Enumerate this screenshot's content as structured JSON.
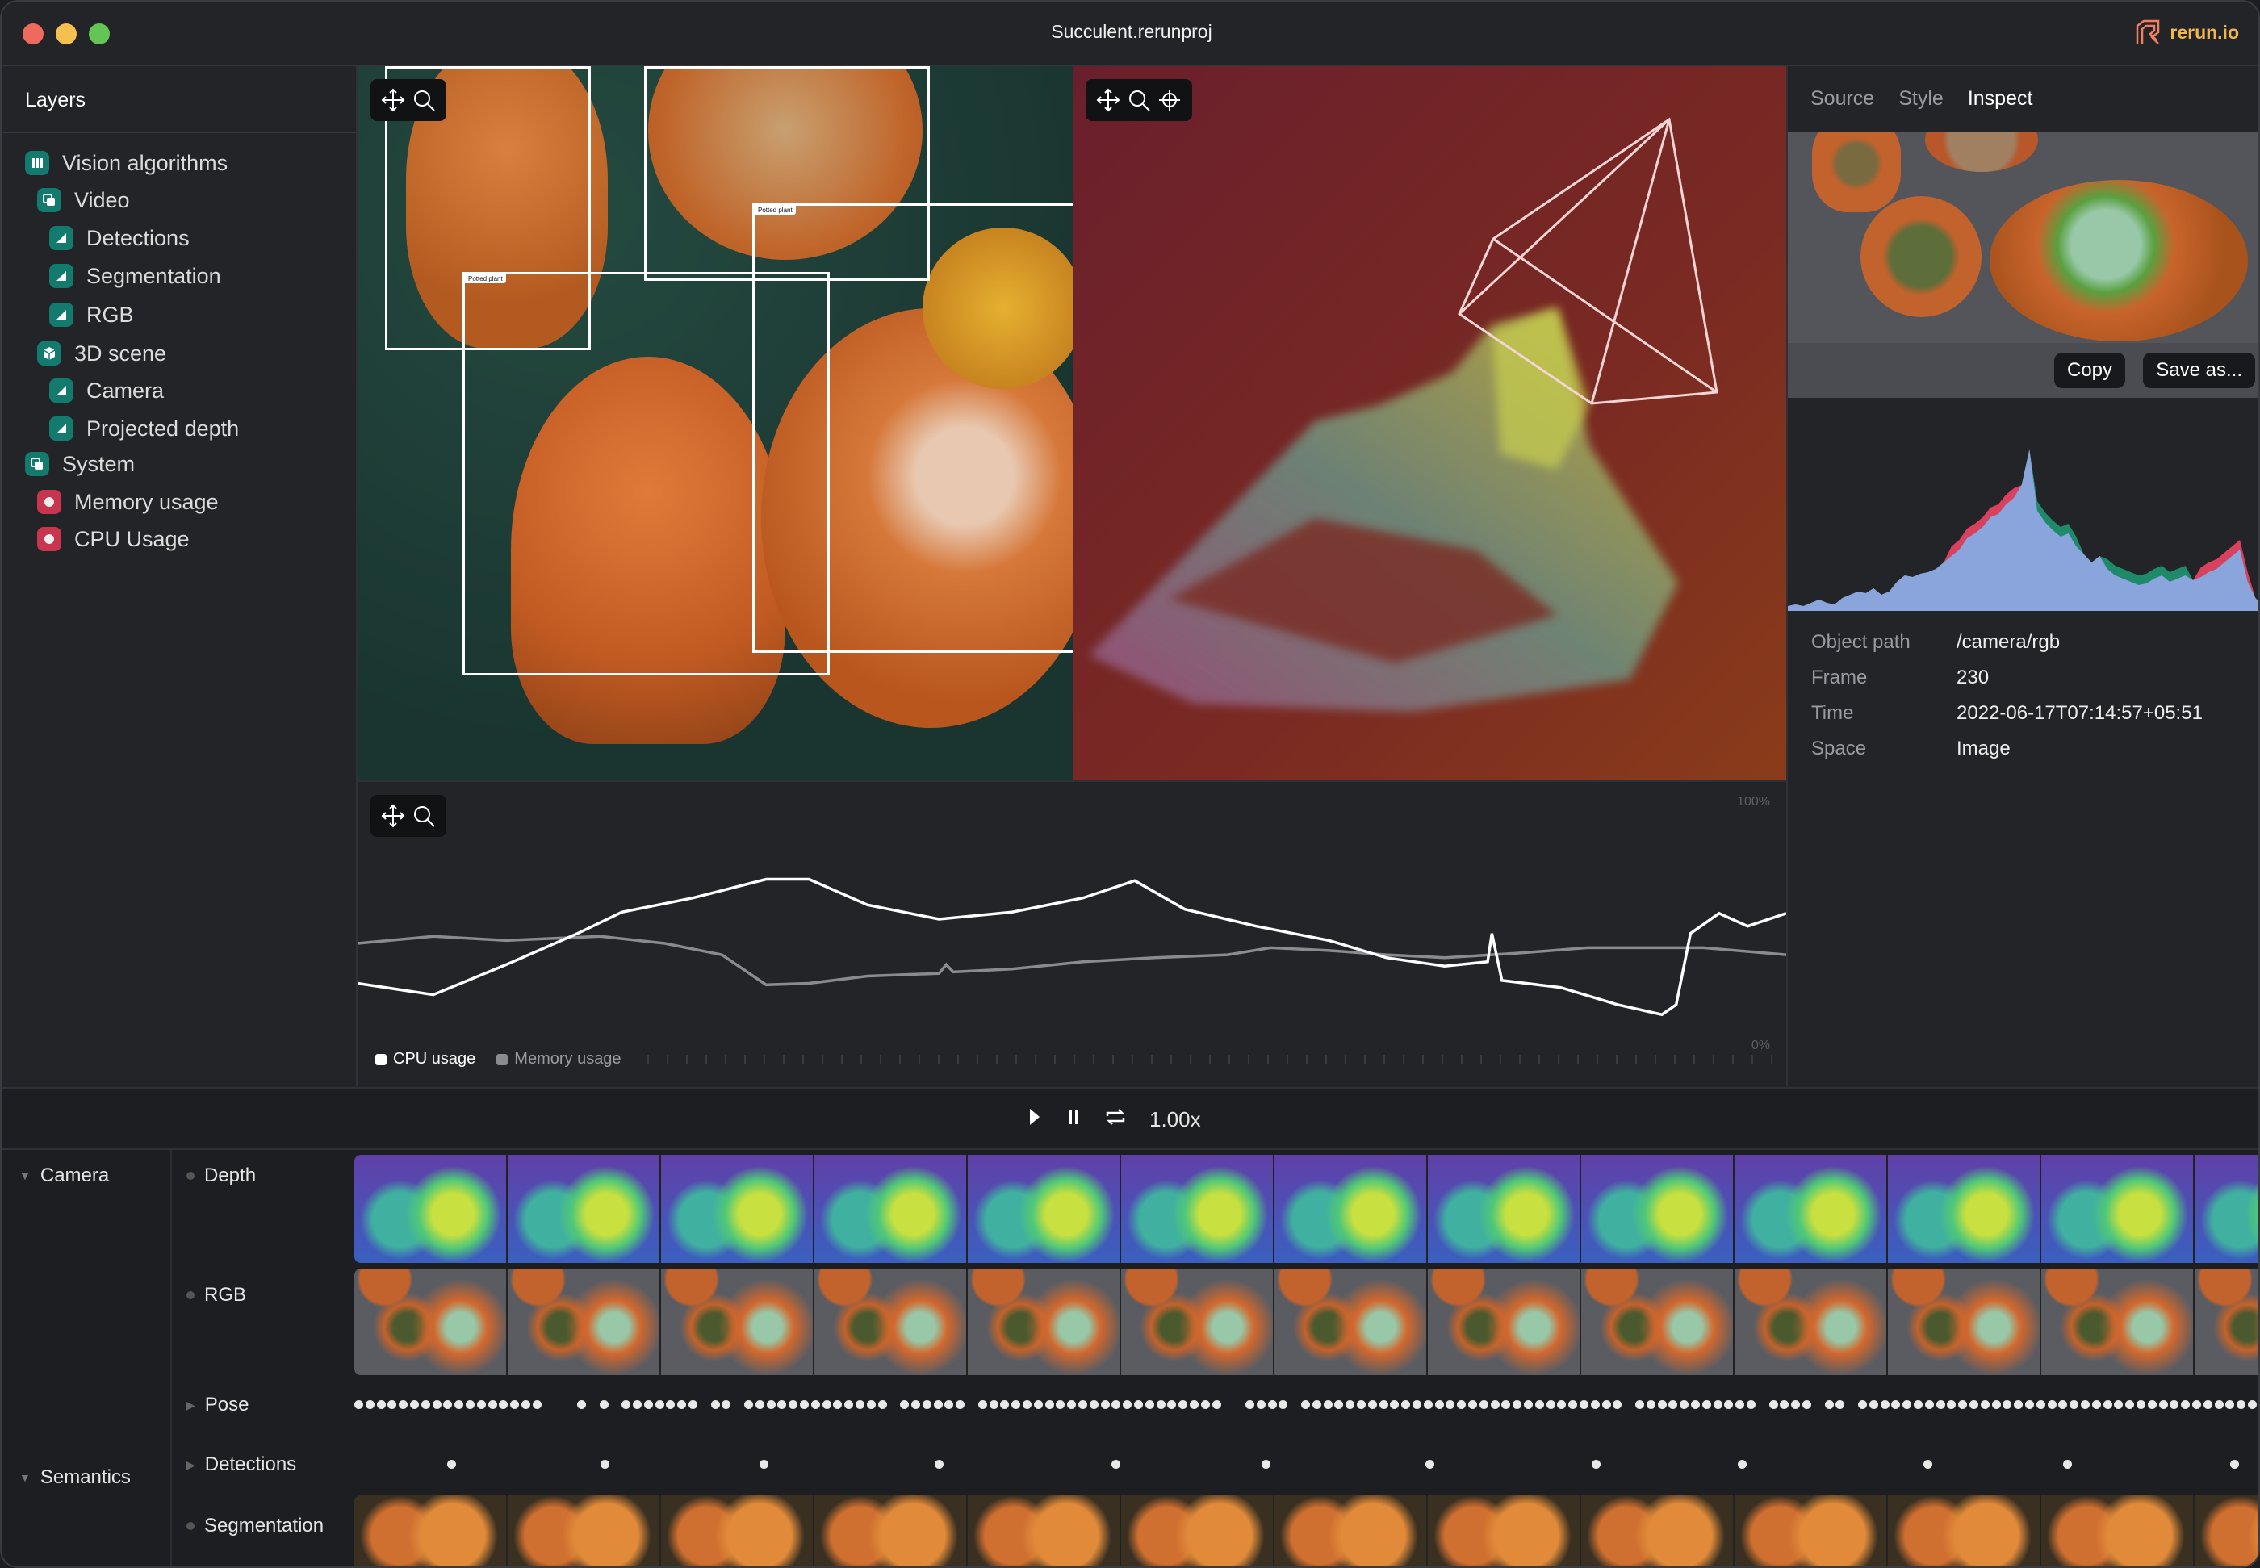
{
  "window": {
    "title": "Succulent.rerunproj",
    "brand": "rerun.io",
    "traffic_lights": {
      "close": "#ee6a5f",
      "minimize": "#f5c04f",
      "maximize": "#62c554"
    }
  },
  "sidebar": {
    "title": "Layers",
    "items": [
      {
        "label": "Vision algorithms",
        "icon": "folder-icon",
        "level": 0
      },
      {
        "label": "Video",
        "icon": "stack-icon",
        "level": 1
      },
      {
        "label": "Detections",
        "icon": "triangle-icon",
        "level": 2
      },
      {
        "label": "Segmentation",
        "icon": "triangle-icon",
        "level": 2
      },
      {
        "label": "RGB",
        "icon": "triangle-icon",
        "level": 2
      },
      {
        "label": "3D scene",
        "icon": "cube-icon",
        "level": 1
      },
      {
        "label": "Camera",
        "icon": "triangle-icon",
        "level": 2
      },
      {
        "label": "Projected depth",
        "icon": "triangle-icon",
        "level": 2
      },
      {
        "label": "System",
        "icon": "stack-icon",
        "level": 0
      },
      {
        "label": "Memory usage",
        "icon": "record-icon",
        "level": 1
      },
      {
        "label": "CPU Usage",
        "icon": "record-icon",
        "level": 1
      }
    ],
    "accent": "#137a6e",
    "alert": "#c8354f"
  },
  "views": {
    "image": {
      "labels": [
        "Potted plant",
        "Potted plant"
      ]
    },
    "space3d": {}
  },
  "chart_data": {
    "type": "line",
    "ylim": [
      0,
      100
    ],
    "y_tick_labels": [
      "100%",
      "0%"
    ],
    "legend": "bottom-left",
    "series": [
      {
        "name": "CPU usage",
        "color": "#ffffff",
        "x": [
          0,
          5.3,
          10.4,
          15.4,
          18.5,
          23.5,
          28.6,
          31.6,
          35.7,
          40.7,
          45.8,
          50.8,
          54.4,
          57.9,
          62.9,
          68,
          72,
          76.1,
          79.1,
          79.4,
          80.1,
          84.2,
          88.2,
          91.3,
          92.3,
          93.3,
          95.3,
          97.3,
          100
        ],
        "y": [
          23.5,
          18.8,
          31.2,
          44.1,
          52.9,
          58.8,
          66.5,
          66.5,
          55.9,
          50,
          52.9,
          58.8,
          65.9,
          54.1,
          47.1,
          41.2,
          34.1,
          30.6,
          32.4,
          44.1,
          24.7,
          21.8,
          14.7,
          10.6,
          14.7,
          44.1,
          52.4,
          47.1,
          52.4
        ]
      },
      {
        "name": "Memory usage",
        "color": "#8a8b8f",
        "x": [
          0,
          5.3,
          10.4,
          17,
          21.5,
          25.5,
          28.6,
          31.6,
          35.7,
          40.7,
          41.2,
          41.7,
          45.8,
          50.8,
          55.8,
          60.9,
          63.9,
          67.9,
          72,
          76.1,
          81.1,
          86.1,
          91.1,
          94.2,
          100
        ],
        "y": [
          40,
          42.9,
          41.2,
          42.9,
          40,
          35.3,
          22.9,
          23.5,
          26.5,
          27.6,
          31.2,
          28.2,
          29.4,
          32.4,
          34.1,
          35.3,
          38.2,
          37.1,
          35.3,
          34.1,
          35.9,
          38.2,
          38.2,
          38.2,
          35.3
        ]
      }
    ]
  },
  "inspector": {
    "tabs": [
      "Source",
      "Style",
      "Inspect"
    ],
    "active_tab": "Inspect",
    "copy_label": "Copy",
    "save_label": "Save as...",
    "histogram": {
      "colors": {
        "base": "#8aa4dc",
        "red": "#d9415e",
        "green": "#1f8a6a"
      },
      "values": [
        3,
        4,
        3,
        5,
        7,
        5,
        4,
        8,
        10,
        12,
        11,
        14,
        10,
        12,
        18,
        22,
        21,
        23,
        24,
        26,
        30,
        34,
        38,
        45,
        48,
        52,
        58,
        60,
        66,
        70,
        78,
        100,
        62,
        55,
        50,
        46,
        48,
        40,
        35,
        30,
        34,
        26,
        22,
        20,
        18,
        16,
        17,
        20,
        22,
        18,
        20,
        22,
        19,
        21,
        24,
        26,
        30,
        34,
        38,
        18,
        8,
        3
      ]
    },
    "properties": [
      {
        "key": "Object path",
        "value": "/camera/rgb"
      },
      {
        "key": "Frame",
        "value": "230"
      },
      {
        "key": "Time",
        "value": "2022-06-17T07:14:57+05:51"
      },
      {
        "key": "Space",
        "value": "Image"
      }
    ]
  },
  "playback": {
    "speed": "1.00x"
  },
  "timeline": {
    "groups": [
      {
        "label": "Camera",
        "rows": [
          "Depth",
          "RGB",
          "Pose"
        ]
      },
      {
        "label": "Semantics",
        "rows": [
          "Detections",
          "Segmentation"
        ]
      }
    ]
  }
}
